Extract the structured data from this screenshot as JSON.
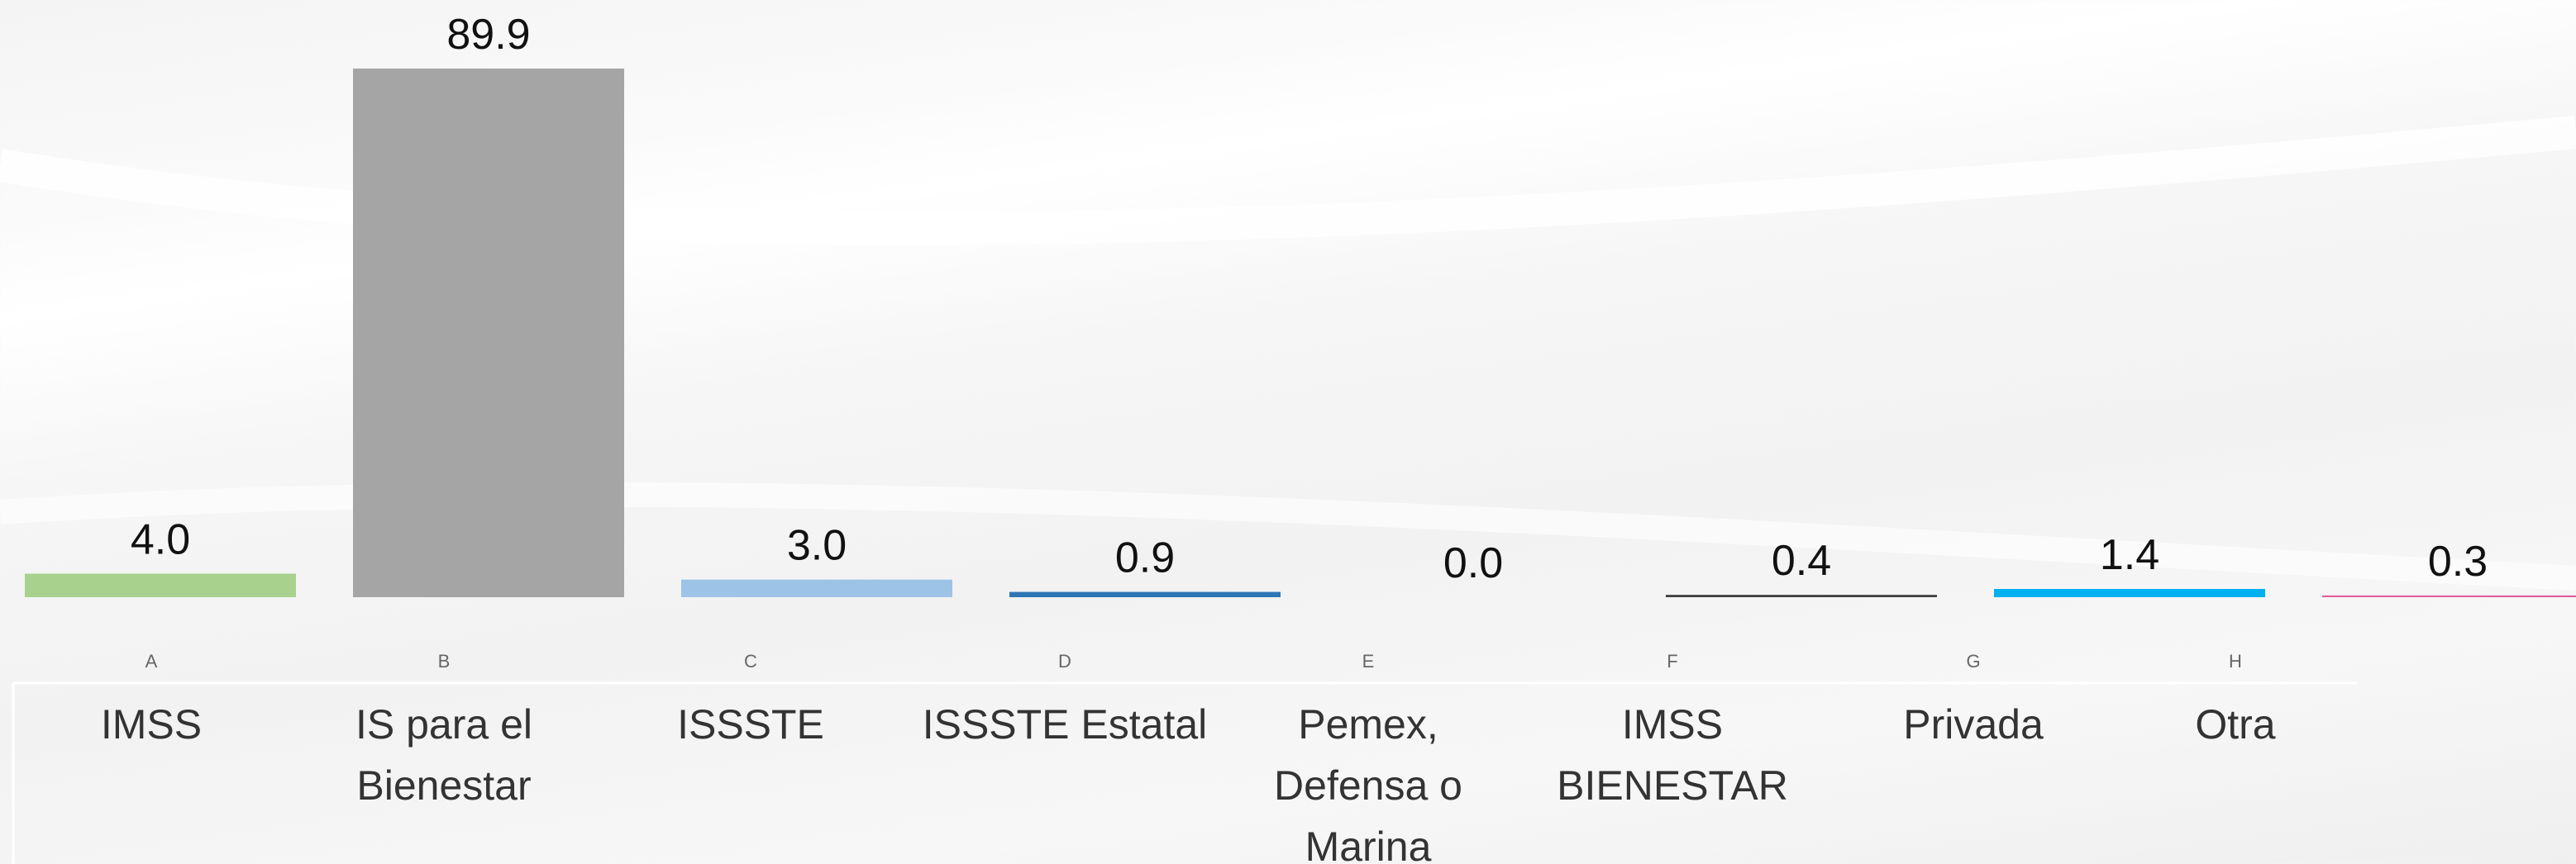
{
  "chart_data": {
    "type": "bar",
    "letters": [
      "A",
      "B",
      "C",
      "D",
      "E",
      "F",
      "G",
      "H"
    ],
    "categories": [
      "IMSS",
      "IS para el Bienestar",
      "ISSSTE",
      "ISSSTE Estatal",
      "Pemex, Defensa o Marina",
      "IMSS BIENESTAR",
      "Privada",
      "Otra"
    ],
    "values": [
      4.0,
      89.9,
      3.0,
      0.9,
      0.0,
      0.4,
      1.4,
      0.3
    ],
    "value_labels": [
      "4.0",
      "89.9",
      "3.0",
      "0.9",
      "0.0",
      "0.4",
      "1.4",
      "0.3"
    ],
    "colors": [
      "#a9d18e",
      "#a5a5a5",
      "#9dc3e6",
      "#2e75b6",
      "#7f7f7f",
      "#404040",
      "#00b0f0",
      "#e0609a"
    ]
  }
}
